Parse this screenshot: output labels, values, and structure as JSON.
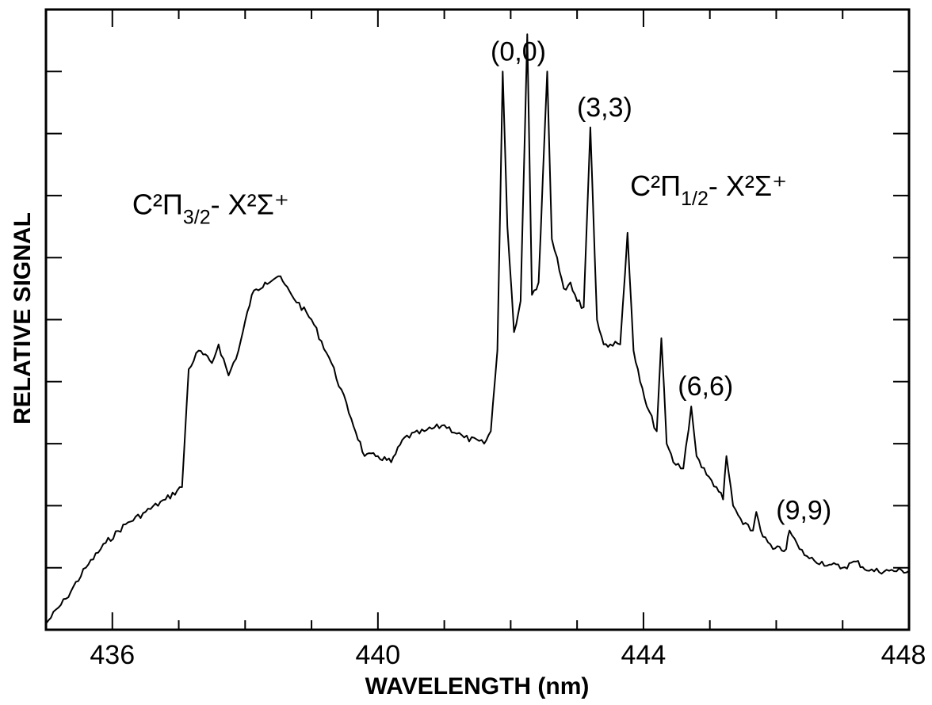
{
  "chart_data": {
    "type": "line",
    "xlabel": "WAVELENGTH (nm)",
    "ylabel": "RELATIVE SIGNAL",
    "xlim": [
      435,
      448
    ],
    "ylim": [
      0,
      10
    ],
    "x_ticks": [
      436,
      440,
      444,
      448
    ],
    "y_ticks": [
      1,
      2,
      3,
      4,
      5,
      6,
      7,
      8,
      9
    ],
    "grid": false,
    "series": [
      {
        "x": [
          435.0,
          435.3,
          435.6,
          435.9,
          436.2,
          436.5,
          436.8,
          437.05,
          437.15,
          437.3,
          437.5,
          437.6,
          437.75,
          437.9,
          438.1,
          438.3,
          438.5,
          438.7,
          439.0,
          439.3,
          439.6,
          439.8,
          440.0,
          440.2,
          440.4,
          440.7,
          441.0,
          441.3,
          441.6,
          441.7,
          441.8,
          441.88,
          441.95,
          442.05,
          442.15,
          442.25,
          442.32,
          442.42,
          442.55,
          442.62,
          442.7,
          442.8,
          442.9,
          443.0,
          443.1,
          443.2,
          443.3,
          443.4,
          443.5,
          443.65,
          443.76,
          443.85,
          443.95,
          444.05,
          444.2,
          444.27,
          444.35,
          444.45,
          444.6,
          444.72,
          444.8,
          444.95,
          445.1,
          445.2,
          445.25,
          445.35,
          445.5,
          445.65,
          445.7,
          445.8,
          445.95,
          446.15,
          446.2,
          446.35,
          446.5,
          446.8,
          447.0,
          447.2,
          447.4,
          447.7,
          448.0
        ],
        "y": [
          0.1,
          0.5,
          1.0,
          1.4,
          1.7,
          1.9,
          2.1,
          2.3,
          4.2,
          4.5,
          4.3,
          4.6,
          4.1,
          4.5,
          5.4,
          5.6,
          5.7,
          5.4,
          5.0,
          4.3,
          3.4,
          2.8,
          2.8,
          2.7,
          3.1,
          3.2,
          3.3,
          3.1,
          3.0,
          3.2,
          4.5,
          9.0,
          6.5,
          4.8,
          5.3,
          9.6,
          5.4,
          5.6,
          9.0,
          6.3,
          6.0,
          5.5,
          5.6,
          5.3,
          5.2,
          8.1,
          5.0,
          4.6,
          4.6,
          4.6,
          6.4,
          4.5,
          4.0,
          3.6,
          3.2,
          4.7,
          3.0,
          2.7,
          2.6,
          3.6,
          2.8,
          2.5,
          2.3,
          2.1,
          2.8,
          2.0,
          1.7,
          1.6,
          1.9,
          1.5,
          1.3,
          1.3,
          1.6,
          1.3,
          1.15,
          1.05,
          1.0,
          1.1,
          0.95,
          0.95,
          0.95
        ]
      }
    ],
    "annotations": [
      {
        "text": "(0,0)",
        "x": 441.9,
        "y": 9.0
      },
      {
        "text": "(3,3)",
        "x": 443.2,
        "y": 8.1
      },
      {
        "text": "(6,6)",
        "x": 444.72,
        "y": 3.6
      },
      {
        "text": "(9,9)",
        "x": 446.2,
        "y": 1.6
      }
    ],
    "band_labels": [
      {
        "main": "C²Π",
        "sub": "3/2",
        "rest": "- X²Σ⁺",
        "x": 436.3,
        "y": 6.7
      },
      {
        "main": "C²Π",
        "sub": "1/2",
        "rest": "- X²Σ⁺",
        "x": 443.8,
        "y": 7.0
      }
    ]
  }
}
